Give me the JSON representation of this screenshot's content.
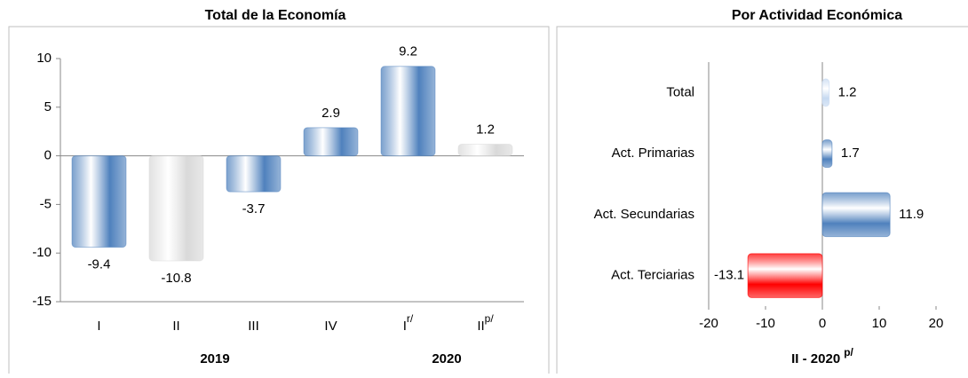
{
  "chart_data": [
    {
      "type": "bar",
      "title": "Total de la Economía",
      "categories": [
        "I",
        "II",
        "III",
        "IV",
        "I",
        "II"
      ],
      "category_notes": [
        null,
        null,
        null,
        null,
        "r/",
        "p/"
      ],
      "groups": [
        {
          "label": "2019",
          "span": [
            0,
            3
          ]
        },
        {
          "label": "2020",
          "span": [
            4,
            5
          ]
        }
      ],
      "values": [
        -9.4,
        -10.8,
        -3.7,
        2.9,
        9.2,
        1.2
      ],
      "colors": [
        "#4f81bd",
        "#d9d9d9",
        "#4f81bd",
        "#4f81bd",
        "#4f81bd",
        "#d9d9d9"
      ],
      "ylim": [
        -15,
        10
      ],
      "yticks": [
        -15,
        -10,
        -5,
        0,
        5,
        10
      ]
    },
    {
      "type": "hbar",
      "title": "Por Actividad Económica",
      "categories": [
        "Total",
        "Act. Primarias",
        "Act. Secundarias",
        "Act. Terciarias"
      ],
      "values": [
        1.2,
        1.7,
        11.9,
        -13.1
      ],
      "colors": [
        "#c6d9f1",
        "#4f81bd",
        "#4f81bd",
        "#ff0000"
      ],
      "xlabel": "II - 2020",
      "xlabel_note": "p/",
      "xlim": [
        -20,
        20
      ],
      "xticks": [
        -20,
        -10,
        0,
        10,
        20
      ]
    }
  ]
}
